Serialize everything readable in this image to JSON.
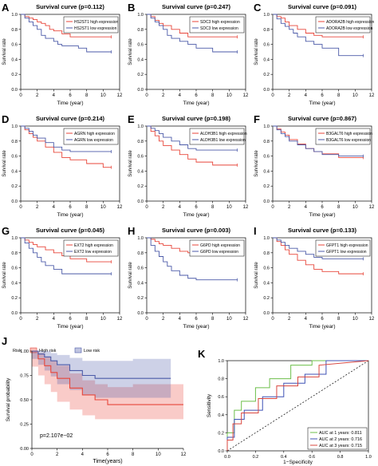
{
  "colors": {
    "high": "#e8463a",
    "low": "#4b5aa8",
    "axis": "#000000",
    "dash": "#000000"
  },
  "chart_data": [
    {
      "panel": "A",
      "type": "line",
      "title": "Survival curve (p=0.112)",
      "xlabel": "Time (year)",
      "ylabel": "Survival rate",
      "xlim": [
        0,
        12
      ],
      "ylim": [
        0,
        1
      ],
      "xticks": [
        "0",
        "2",
        "4",
        "6",
        "8",
        "10",
        "12"
      ],
      "yticks": [
        "0.0",
        "0.2",
        "0.4",
        "0.6",
        "0.8",
        "1.0"
      ],
      "legend_position": "top-right",
      "series": [
        {
          "name": "HS2ST1 high expression",
          "x": [
            0,
            0.5,
            1,
            1.5,
            2,
            2.5,
            3,
            3.5,
            4,
            5,
            6,
            7,
            9,
            11
          ],
          "y": [
            1,
            0.97,
            0.95,
            0.93,
            0.9,
            0.88,
            0.85,
            0.8,
            0.78,
            0.74,
            0.7,
            0.7,
            0.7,
            0.7
          ]
        },
        {
          "name": "HS2ST1 low expression",
          "x": [
            0,
            0.5,
            1,
            1.5,
            2,
            2.5,
            3,
            4,
            4.5,
            5,
            6,
            7,
            8,
            11
          ],
          "y": [
            1,
            0.95,
            0.9,
            0.85,
            0.8,
            0.72,
            0.68,
            0.64,
            0.6,
            0.58,
            0.58,
            0.55,
            0.5,
            0.5
          ]
        }
      ]
    },
    {
      "panel": "B",
      "type": "line",
      "title": "Survival curve (p=0.247)",
      "xlabel": "Time (year)",
      "ylabel": "Survival rate",
      "xlim": [
        0,
        12
      ],
      "ylim": [
        0,
        1
      ],
      "xticks": [
        "0",
        "2",
        "4",
        "6",
        "8",
        "10",
        "12"
      ],
      "yticks": [
        "0.0",
        "0.2",
        "0.4",
        "0.6",
        "0.8",
        "1.0"
      ],
      "legend_position": "top-right",
      "series": [
        {
          "name": "SDC3 high expression",
          "x": [
            0,
            0.5,
            1,
            1.5,
            2,
            3,
            4,
            5,
            6,
            8,
            11
          ],
          "y": [
            1,
            0.97,
            0.92,
            0.88,
            0.85,
            0.8,
            0.75,
            0.7,
            0.7,
            0.7,
            0.7
          ]
        },
        {
          "name": "SDC3 low expression",
          "x": [
            0,
            0.5,
            1,
            1.5,
            2,
            2.5,
            3,
            4,
            5,
            6,
            8,
            11
          ],
          "y": [
            1,
            0.95,
            0.9,
            0.85,
            0.8,
            0.72,
            0.68,
            0.64,
            0.6,
            0.55,
            0.5,
            0.5
          ]
        }
      ]
    },
    {
      "panel": "C",
      "type": "line",
      "title": "Survival curve (p=0.091)",
      "xlabel": "Time (year)",
      "ylabel": "Survival rate",
      "xlim": [
        0,
        12
      ],
      "ylim": [
        0,
        1
      ],
      "xticks": [
        "0",
        "2",
        "4",
        "6",
        "8",
        "10",
        "12"
      ],
      "yticks": [
        "0.0",
        "0.2",
        "0.4",
        "0.6",
        "0.8",
        "1.0"
      ],
      "legend_position": "top-right",
      "series": [
        {
          "name": "ADORA2B high expression",
          "x": [
            0,
            0.5,
            1,
            1.5,
            2,
            3,
            4,
            5,
            6,
            11
          ],
          "y": [
            1,
            0.97,
            0.95,
            0.9,
            0.85,
            0.8,
            0.75,
            0.72,
            0.7,
            0.7
          ]
        },
        {
          "name": "ADORA2B low expression",
          "x": [
            0,
            0.5,
            1,
            1.5,
            2,
            2.5,
            3,
            4,
            5,
            6,
            8,
            11
          ],
          "y": [
            1,
            0.94,
            0.88,
            0.84,
            0.8,
            0.75,
            0.7,
            0.64,
            0.6,
            0.55,
            0.45,
            0.45
          ]
        }
      ]
    },
    {
      "panel": "D",
      "type": "line",
      "title": "Survival curve (p=0.214)",
      "xlabel": "Time (year)",
      "ylabel": "Survival rate",
      "xlim": [
        0,
        12
      ],
      "ylim": [
        0,
        1
      ],
      "xticks": [
        "0",
        "2",
        "4",
        "6",
        "8",
        "10",
        "12"
      ],
      "yticks": [
        "0.0",
        "0.2",
        "0.4",
        "0.6",
        "0.8",
        "1.0"
      ],
      "legend_position": "top-right",
      "series": [
        {
          "name": "AGRN high expression",
          "x": [
            0,
            0.5,
            1,
            1.5,
            2,
            3,
            4,
            5,
            6,
            8,
            10,
            11
          ],
          "y": [
            1,
            0.95,
            0.9,
            0.85,
            0.8,
            0.72,
            0.65,
            0.58,
            0.55,
            0.5,
            0.45,
            0.45
          ]
        },
        {
          "name": "AGRN low expression",
          "x": [
            0,
            0.5,
            1,
            1.5,
            2,
            3,
            4,
            5,
            6,
            11
          ],
          "y": [
            1,
            0.97,
            0.93,
            0.88,
            0.84,
            0.78,
            0.72,
            0.68,
            0.66,
            0.66
          ]
        }
      ]
    },
    {
      "panel": "E",
      "type": "line",
      "title": "Survival curve (p=0.198)",
      "xlabel": "Time (year)",
      "ylabel": "Survival rate",
      "xlim": [
        0,
        12
      ],
      "ylim": [
        0,
        1
      ],
      "xticks": [
        "0",
        "2",
        "4",
        "6",
        "8",
        "10",
        "12"
      ],
      "yticks": [
        "0.0",
        "0.2",
        "0.4",
        "0.6",
        "0.8",
        "1.0"
      ],
      "legend_position": "top-right",
      "series": [
        {
          "name": "ALDH3B1 high expression",
          "x": [
            0,
            0.5,
            1,
            1.5,
            2,
            3,
            4,
            5,
            6,
            8,
            11
          ],
          "y": [
            1,
            0.93,
            0.87,
            0.8,
            0.74,
            0.68,
            0.62,
            0.56,
            0.52,
            0.48,
            0.48
          ]
        },
        {
          "name": "ALDH3B1 low expression",
          "x": [
            0,
            0.5,
            1,
            1.5,
            2,
            3,
            4,
            5,
            6,
            11
          ],
          "y": [
            1,
            0.97,
            0.94,
            0.9,
            0.85,
            0.8,
            0.75,
            0.7,
            0.68,
            0.68
          ]
        }
      ]
    },
    {
      "panel": "F",
      "type": "line",
      "title": "Survival curve (p=0.867)",
      "xlabel": "Time (year)",
      "ylabel": "Survival rate",
      "xlim": [
        0,
        12
      ],
      "ylim": [
        0,
        1
      ],
      "xticks": [
        "0",
        "2",
        "4",
        "6",
        "8",
        "10",
        "12"
      ],
      "yticks": [
        "0.0",
        "0.2",
        "0.4",
        "0.6",
        "0.8",
        "1.0"
      ],
      "legend_position": "top-right",
      "series": [
        {
          "name": "B3GALT6 high expression",
          "x": [
            0,
            0.5,
            1,
            1.5,
            2,
            3,
            4,
            5,
            6,
            8,
            11
          ],
          "y": [
            1,
            0.96,
            0.92,
            0.88,
            0.82,
            0.76,
            0.7,
            0.66,
            0.63,
            0.58,
            0.58
          ]
        },
        {
          "name": "B3GALT6 low expression",
          "x": [
            0,
            0.5,
            1,
            1.5,
            2,
            3,
            4,
            5,
            6,
            8,
            11
          ],
          "y": [
            1,
            0.95,
            0.9,
            0.86,
            0.8,
            0.75,
            0.7,
            0.66,
            0.62,
            0.6,
            0.6
          ]
        }
      ]
    },
    {
      "panel": "G",
      "type": "line",
      "title": "Survival curve (p=0.045)",
      "xlabel": "Time (year)",
      "ylabel": "Survival rate",
      "xlim": [
        0,
        12
      ],
      "ylim": [
        0,
        1
      ],
      "xticks": [
        "0",
        "2",
        "4",
        "6",
        "8",
        "10",
        "12"
      ],
      "yticks": [
        "0.0",
        "0.2",
        "0.4",
        "0.6",
        "0.8",
        "1.0"
      ],
      "legend_position": "top-right",
      "series": [
        {
          "name": "EXT2 high expression",
          "x": [
            0,
            0.5,
            1,
            1.5,
            2,
            3,
            4,
            5,
            6,
            8,
            11
          ],
          "y": [
            1,
            0.97,
            0.94,
            0.91,
            0.88,
            0.84,
            0.8,
            0.76,
            0.72,
            0.68,
            0.68
          ]
        },
        {
          "name": "EXT2 low expression",
          "x": [
            0,
            0.5,
            1,
            1.5,
            2,
            2.5,
            3,
            4,
            5,
            6,
            11
          ],
          "y": [
            1,
            0.93,
            0.86,
            0.8,
            0.74,
            0.68,
            0.63,
            0.58,
            0.52,
            0.52,
            0.52
          ]
        }
      ]
    },
    {
      "panel": "H",
      "type": "line",
      "title": "Survival curve (p=0.003)",
      "xlabel": "Time (year)",
      "ylabel": "Survival rate",
      "xlim": [
        0,
        12
      ],
      "ylim": [
        0,
        1
      ],
      "xticks": [
        "0",
        "2",
        "4",
        "6",
        "8",
        "10",
        "12"
      ],
      "yticks": [
        "0.0",
        "0.2",
        "0.4",
        "0.6",
        "0.8",
        "1.0"
      ],
      "legend_position": "top-right",
      "series": [
        {
          "name": "G6PD high expression",
          "x": [
            0,
            0.5,
            1,
            1.5,
            2,
            3,
            4,
            5,
            6,
            11
          ],
          "y": [
            1,
            0.98,
            0.95,
            0.92,
            0.9,
            0.86,
            0.82,
            0.8,
            0.8,
            0.8
          ]
        },
        {
          "name": "G6PD low expression",
          "x": [
            0,
            0.5,
            1,
            1.5,
            2,
            2.5,
            3,
            4,
            5,
            6,
            8,
            11
          ],
          "y": [
            1,
            0.9,
            0.82,
            0.75,
            0.68,
            0.62,
            0.56,
            0.5,
            0.46,
            0.44,
            0.44,
            0.44
          ]
        }
      ]
    },
    {
      "panel": "I",
      "type": "line",
      "title": "Survival curve (p=0.133)",
      "xlabel": "Time (year)",
      "ylabel": "Survival rate",
      "xlim": [
        0,
        12
      ],
      "ylim": [
        0,
        1
      ],
      "xticks": [
        "0",
        "2",
        "4",
        "6",
        "8",
        "10",
        "12"
      ],
      "yticks": [
        "0.0",
        "0.2",
        "0.4",
        "0.6",
        "0.8",
        "1.0"
      ],
      "legend_position": "top-right",
      "series": [
        {
          "name": "GFPT1 high expression",
          "x": [
            0,
            0.5,
            1,
            1.5,
            2,
            3,
            4,
            5,
            6,
            8,
            11
          ],
          "y": [
            1,
            0.95,
            0.9,
            0.84,
            0.78,
            0.7,
            0.64,
            0.58,
            0.55,
            0.52,
            0.52
          ]
        },
        {
          "name": "GFPT1 low expression",
          "x": [
            0,
            0.5,
            1,
            1.5,
            2,
            3,
            4,
            5,
            6,
            8,
            11
          ],
          "y": [
            1,
            0.97,
            0.94,
            0.9,
            0.86,
            0.82,
            0.78,
            0.74,
            0.72,
            0.72,
            0.72
          ]
        }
      ]
    },
    {
      "panel": "J",
      "type": "area",
      "xlabel": "Time(years)",
      "ylabel": "Survival probability",
      "xlim": [
        0,
        12
      ],
      "ylim": [
        0,
        1
      ],
      "xticks": [
        "0",
        "2",
        "4",
        "6",
        "8",
        "10",
        "12"
      ],
      "yticks": [
        "0.00",
        "0.25",
        "0.50",
        "0.75",
        "1.00"
      ],
      "legend_title": "Risk",
      "legend_position": "top",
      "annotation": "p=2.107e−02",
      "series": [
        {
          "name": "High risk",
          "x": [
            0,
            0.5,
            1,
            1.5,
            2,
            3,
            4,
            5,
            6,
            8,
            10,
            12
          ],
          "y": [
            1,
            0.92,
            0.85,
            0.78,
            0.72,
            0.62,
            0.55,
            0.5,
            0.45,
            0.45,
            0.45,
            0.45
          ],
          "upper": [
            1,
            0.98,
            0.94,
            0.9,
            0.85,
            0.77,
            0.7,
            0.66,
            0.63,
            0.66,
            0.66,
            0.66
          ],
          "lower": [
            1,
            0.84,
            0.75,
            0.66,
            0.58,
            0.48,
            0.4,
            0.34,
            0.3,
            0.3,
            0.3,
            0.3
          ]
        },
        {
          "name": "Low risk",
          "x": [
            0,
            0.5,
            1,
            1.5,
            2,
            3,
            4,
            5,
            6,
            8,
            11
          ],
          "y": [
            1,
            0.97,
            0.94,
            0.9,
            0.86,
            0.8,
            0.75,
            0.72,
            0.72,
            0.72,
            0.72
          ],
          "upper": [
            1,
            1,
            1,
            0.98,
            0.96,
            0.93,
            0.9,
            0.9,
            0.9,
            0.92,
            0.92
          ],
          "lower": [
            1,
            0.92,
            0.86,
            0.8,
            0.74,
            0.66,
            0.6,
            0.55,
            0.52,
            0.52,
            0.52
          ]
        }
      ]
    },
    {
      "panel": "K",
      "type": "line",
      "xlabel": "1−Specificity",
      "ylabel": "Sensitivity",
      "xlim": [
        0,
        1
      ],
      "ylim": [
        0,
        1
      ],
      "xticks": [
        "0.0",
        "0.2",
        "0.4",
        "0.6",
        "0.8",
        "1.0"
      ],
      "yticks": [
        "0.0",
        "0.2",
        "0.4",
        "0.6",
        "0.8",
        "1.0"
      ],
      "legend_position": "bottom-right",
      "series": [
        {
          "name": "AUC at 1 years: 0.811",
          "color": "#6cbf4a",
          "x": [
            0,
            0,
            0.05,
            0.05,
            0.1,
            0.1,
            0.2,
            0.2,
            0.3,
            0.3,
            0.45,
            0.45,
            0.6,
            0.6,
            1
          ],
          "y": [
            0,
            0.2,
            0.2,
            0.45,
            0.45,
            0.55,
            0.55,
            0.7,
            0.7,
            0.8,
            0.8,
            0.95,
            0.95,
            1,
            1
          ]
        },
        {
          "name": "AUC at 2 years: 0.716",
          "color": "#3f52b5",
          "x": [
            0,
            0,
            0.05,
            0.05,
            0.12,
            0.12,
            0.25,
            0.25,
            0.4,
            0.4,
            0.55,
            0.55,
            0.7,
            0.7,
            1
          ],
          "y": [
            0,
            0.15,
            0.15,
            0.35,
            0.35,
            0.45,
            0.45,
            0.6,
            0.6,
            0.75,
            0.75,
            0.85,
            0.85,
            1,
            1
          ]
        },
        {
          "name": "AUC at 3 years: 0.715",
          "color": "#d9453d",
          "x": [
            0,
            0,
            0.04,
            0.04,
            0.1,
            0.1,
            0.22,
            0.22,
            0.35,
            0.35,
            0.5,
            0.5,
            0.65,
            0.65,
            1
          ],
          "y": [
            0,
            0.12,
            0.12,
            0.3,
            0.3,
            0.42,
            0.42,
            0.58,
            0.58,
            0.72,
            0.72,
            0.82,
            0.82,
            0.95,
            1
          ]
        }
      ],
      "reference_line": {
        "x": [
          0,
          1
        ],
        "y": [
          0,
          1
        ]
      }
    }
  ]
}
